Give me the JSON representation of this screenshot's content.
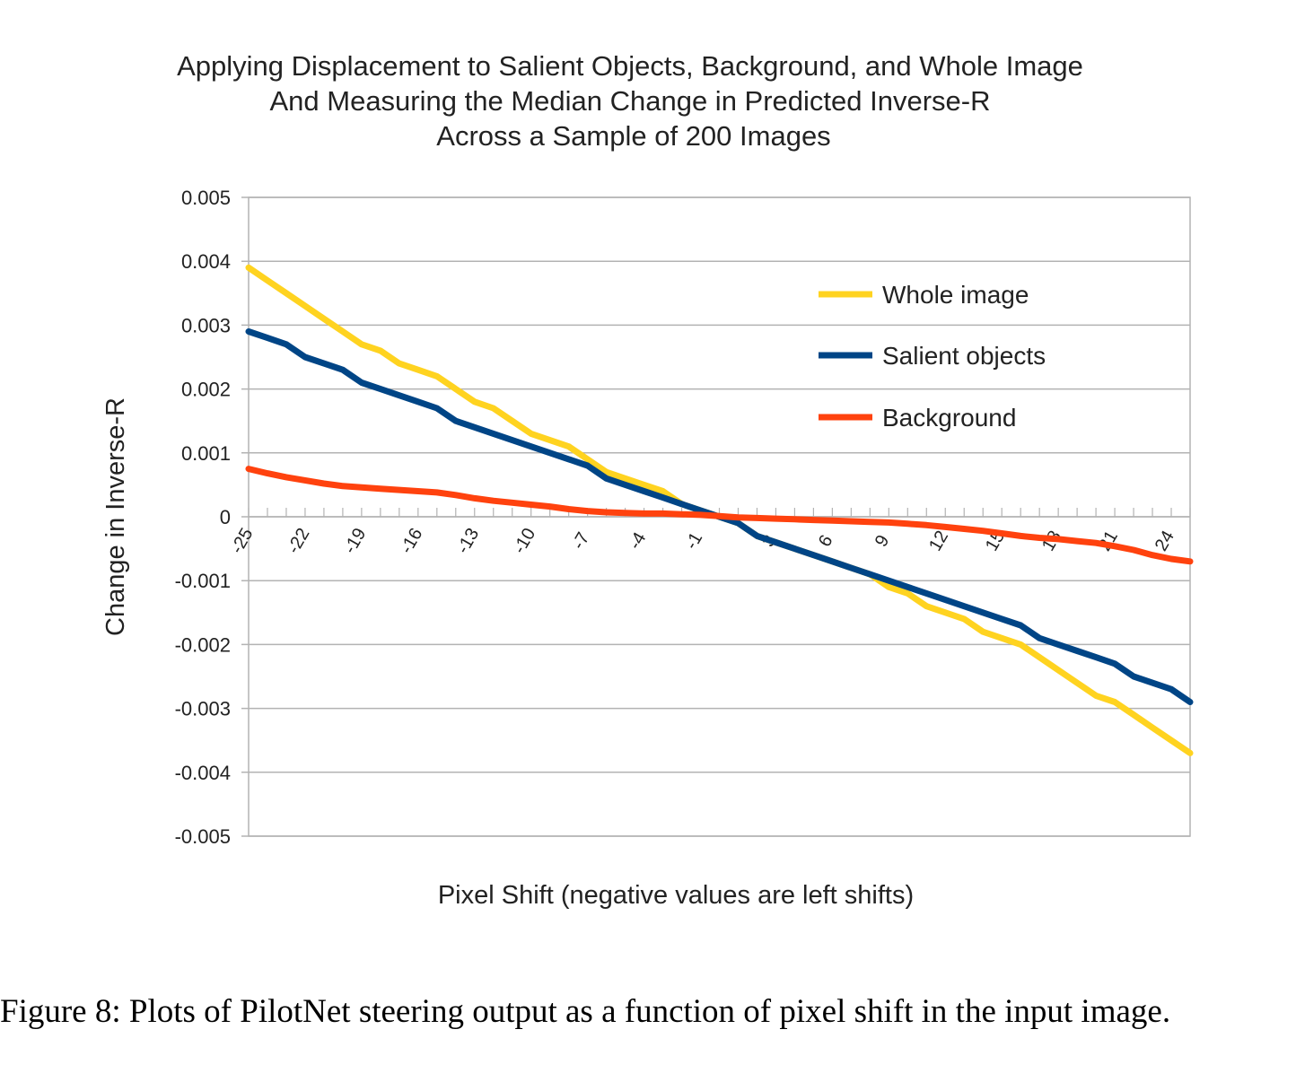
{
  "chart_data": {
    "type": "line",
    "title": [
      "Applying Displacement to Salient Objects, Background, and Whole Image",
      "And Measuring the Median Change in Predicted Inverse-R",
      "Across a Sample of 200 Images"
    ],
    "xlabel": "Pixel Shift (negative values are left shifts)",
    "ylabel": "Change in Inverse-R",
    "xlim": [
      -25,
      25
    ],
    "ylim": [
      -0.005,
      0.005
    ],
    "yticks": [
      "0.005",
      "0.004",
      "0.003",
      "0.002",
      "0.001",
      "0",
      "-0.001",
      "-0.002",
      "-0.003",
      "-0.004",
      "-0.005"
    ],
    "xtick_labels": [
      "-25",
      "-22",
      "-19",
      "-16",
      "-13",
      "-10",
      "-7",
      "-4",
      "-1",
      "3",
      "6",
      "9",
      "12",
      "15",
      "18",
      "21",
      "24"
    ],
    "grid": "horizontal",
    "legend_position": "top-right",
    "x": [
      -25,
      -24,
      -23,
      -22,
      -21,
      -20,
      -19,
      -18,
      -17,
      -16,
      -15,
      -14,
      -13,
      -12,
      -11,
      -10,
      -9,
      -8,
      -7,
      -6,
      -5,
      -4,
      -3,
      -2,
      -1,
      0,
      1,
      2,
      3,
      4,
      5,
      6,
      7,
      8,
      9,
      10,
      11,
      12,
      13,
      14,
      15,
      16,
      17,
      18,
      19,
      20,
      21,
      22,
      23,
      24,
      25
    ],
    "series": [
      {
        "name": "Whole image",
        "color": "#FFD320",
        "values": [
          0.0039,
          0.0037,
          0.0035,
          0.0033,
          0.0031,
          0.0029,
          0.0027,
          0.0026,
          0.0024,
          0.0023,
          0.0022,
          0.002,
          0.0018,
          0.0017,
          0.0015,
          0.0013,
          0.0012,
          0.0011,
          0.0009,
          0.0007,
          0.0006,
          0.0005,
          0.0004,
          0.0002,
          0.0001,
          0.0,
          -0.0001,
          -0.0003,
          -0.0004,
          -0.0005,
          -0.0006,
          -0.0007,
          -0.0008,
          -0.0009,
          -0.0011,
          -0.0012,
          -0.0014,
          -0.0015,
          -0.0016,
          -0.0018,
          -0.0019,
          -0.002,
          -0.0022,
          -0.0024,
          -0.0026,
          -0.0028,
          -0.0029,
          -0.0031,
          -0.0033,
          -0.0035,
          -0.0037
        ]
      },
      {
        "name": "Salient objects",
        "color": "#004586",
        "values": [
          0.0029,
          0.0028,
          0.0027,
          0.0025,
          0.0024,
          0.0023,
          0.0021,
          0.002,
          0.0019,
          0.0018,
          0.0017,
          0.0015,
          0.0014,
          0.0013,
          0.0012,
          0.0011,
          0.001,
          0.0009,
          0.0008,
          0.0006,
          0.0005,
          0.0004,
          0.0003,
          0.0002,
          0.0001,
          0.0,
          -0.0001,
          -0.0003,
          -0.0004,
          -0.0005,
          -0.0006,
          -0.0007,
          -0.0008,
          -0.0009,
          -0.001,
          -0.0011,
          -0.0012,
          -0.0013,
          -0.0014,
          -0.0015,
          -0.0016,
          -0.0017,
          -0.0019,
          -0.002,
          -0.0021,
          -0.0022,
          -0.0023,
          -0.0025,
          -0.0026,
          -0.0027,
          -0.0029
        ]
      },
      {
        "name": "Background",
        "color": "#FF420E",
        "values": [
          0.00075,
          0.00068,
          0.00062,
          0.00057,
          0.00052,
          0.00048,
          0.00046,
          0.00044,
          0.00042,
          0.0004,
          0.00038,
          0.00034,
          0.00029,
          0.00025,
          0.00022,
          0.00019,
          0.00016,
          0.00012,
          9e-05,
          7e-05,
          6e-05,
          5e-05,
          5e-05,
          4e-05,
          3e-05,
          1e-05,
          -1e-05,
          -2e-05,
          -3e-05,
          -4e-05,
          -5e-05,
          -6e-05,
          -7e-05,
          -8e-05,
          -9e-05,
          -0.00011,
          -0.00013,
          -0.00016,
          -0.00019,
          -0.00022,
          -0.00026,
          -0.0003,
          -0.00033,
          -0.00035,
          -0.00038,
          -0.00041,
          -0.00046,
          -0.00052,
          -0.0006,
          -0.00066,
          -0.0007
        ]
      }
    ]
  },
  "caption": "Figure 8: Plots of PilotNet steering output as a function of pixel shift in the input image."
}
